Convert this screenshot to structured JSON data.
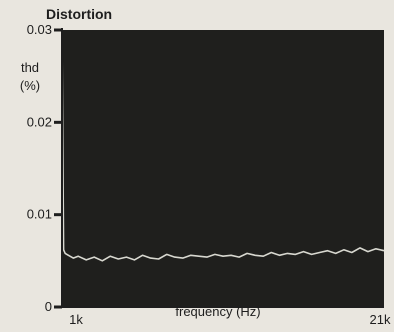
{
  "colors": {
    "paper": "#e9e6df",
    "plot_background": "#1f1f1d",
    "trace": "#d8d8d0",
    "axis": "#1e1e1e"
  },
  "chart_data": {
    "type": "line",
    "title": "Distortion",
    "xlabel": "frequency (Hz)",
    "ylabel": "thd\n(%)",
    "xlim": [
      1000,
      21000
    ],
    "ylim": [
      0,
      0.03
    ],
    "x_tick_labels": [
      "1k",
      "21k"
    ],
    "y_tick_labels": [
      "0",
      "0.01",
      "0.02",
      "0.03"
    ],
    "y_ticks": [
      0,
      0.01,
      0.02,
      0.03
    ],
    "grid": false,
    "legend": "none",
    "series": [
      {
        "x": [
          1000,
          1100,
          1200,
          1400,
          1700,
          2000,
          2500,
          3000,
          3500,
          4000,
          4500,
          5000,
          5500,
          6000,
          6500,
          7000,
          7500,
          8000,
          8500,
          9000,
          9500,
          10000,
          10500,
          11000,
          11500,
          12000,
          12500,
          13000,
          13500,
          14000,
          14500,
          15000,
          15500,
          16000,
          16500,
          17000,
          17500,
          18000,
          18500,
          19000,
          19500,
          20000,
          20500,
          21000
        ],
        "y": [
          0.0295,
          0.0062,
          0.0058,
          0.0056,
          0.0053,
          0.0055,
          0.0051,
          0.0054,
          0.005,
          0.0055,
          0.0052,
          0.0054,
          0.0051,
          0.0056,
          0.0053,
          0.0052,
          0.0057,
          0.0054,
          0.0053,
          0.0056,
          0.0055,
          0.0054,
          0.0057,
          0.0055,
          0.0056,
          0.0054,
          0.0058,
          0.0056,
          0.0055,
          0.0059,
          0.0056,
          0.0058,
          0.0057,
          0.006,
          0.0057,
          0.0059,
          0.0061,
          0.0058,
          0.0062,
          0.0059,
          0.0064,
          0.006,
          0.0063,
          0.0061
        ]
      }
    ]
  }
}
